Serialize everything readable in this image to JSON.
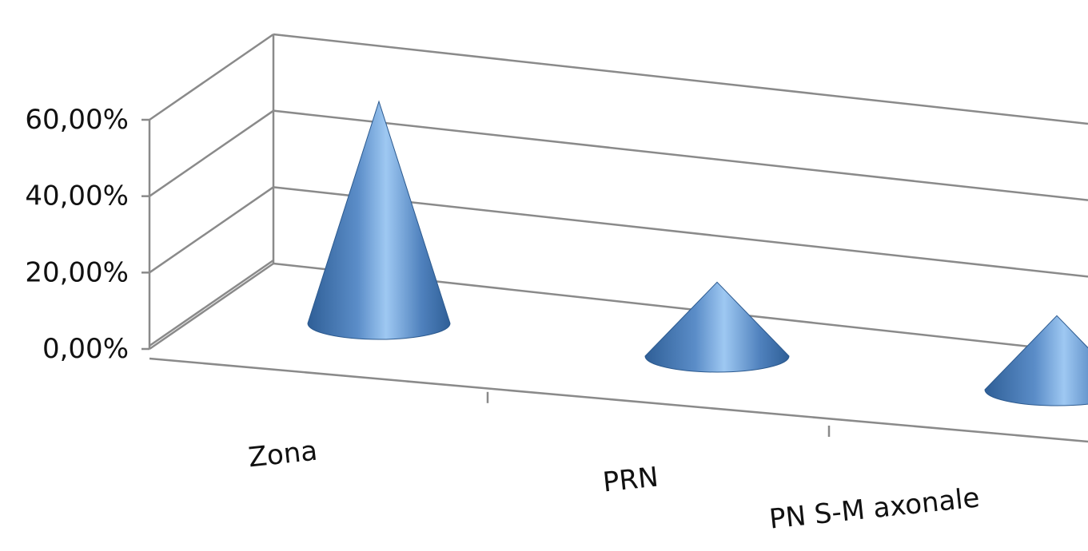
{
  "chart_data": {
    "type": "bar",
    "shape": "3d-cone",
    "categories": [
      "Zona",
      "PRN",
      "PN S-M axonale"
    ],
    "values": [
      0.6,
      0.2,
      0.2
    ],
    "ylim": [
      0,
      0.6
    ],
    "yticks": [
      "0,00%",
      "20,00%",
      "40,00%",
      "60,00%"
    ],
    "title": "",
    "xlabel": "",
    "ylabel": "",
    "legend": "none",
    "grid": true,
    "colors": {
      "cone_dark": "#2f5f97",
      "cone_mid": "#4f81bd",
      "cone_light": "#9ec8f2",
      "grid": "#8a8a8a"
    }
  }
}
